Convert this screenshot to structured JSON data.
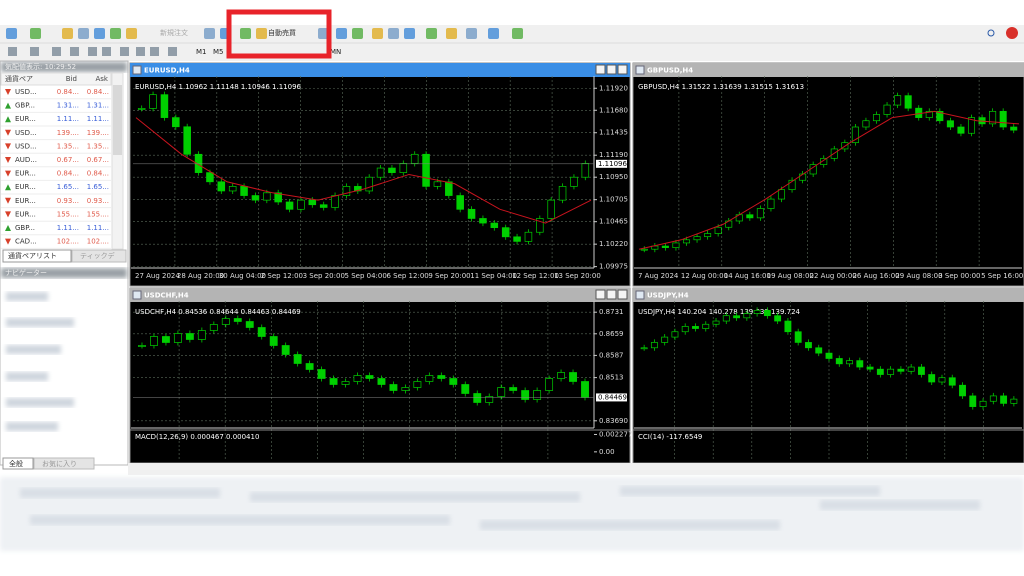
{
  "toolbar": {
    "new_order": "新規注文",
    "auto_trading": "自動売買",
    "timeframes": [
      "M1",
      "M5",
      "MN"
    ]
  },
  "market_watch": {
    "title": "気配値表示: 10:29:52",
    "columns": [
      "通貨ペア",
      "Bid",
      "Ask"
    ],
    "rows": [
      {
        "symbol": "USD...",
        "bid": "0.84...",
        "ask": "0.84...",
        "direction": "down"
      },
      {
        "symbol": "GBP...",
        "bid": "1.31...",
        "ask": "1.31...",
        "direction": "up"
      },
      {
        "symbol": "EUR...",
        "bid": "1.11...",
        "ask": "1.11...",
        "direction": "up"
      },
      {
        "symbol": "USD...",
        "bid": "139....",
        "ask": "139....",
        "direction": "down"
      },
      {
        "symbol": "USD...",
        "bid": "1.35...",
        "ask": "1.35...",
        "direction": "down"
      },
      {
        "symbol": "AUD...",
        "bid": "0.67...",
        "ask": "0.67...",
        "direction": "down"
      },
      {
        "symbol": "EUR...",
        "bid": "0.84...",
        "ask": "0.84...",
        "direction": "down"
      },
      {
        "symbol": "EUR...",
        "bid": "1.65...",
        "ask": "1.65...",
        "direction": "up"
      },
      {
        "symbol": "EUR...",
        "bid": "0.93...",
        "ask": "0.93...",
        "direction": "down"
      },
      {
        "symbol": "EUR...",
        "bid": "155....",
        "ask": "155....",
        "direction": "down"
      },
      {
        "symbol": "GBP...",
        "bid": "1.11...",
        "ask": "1.11...",
        "direction": "up"
      },
      {
        "symbol": "CAD...",
        "bid": "102....",
        "ask": "102....",
        "direction": "down"
      }
    ],
    "tabs": [
      "通貨ペアリスト",
      "ティックデ"
    ]
  },
  "navigator": {
    "title": "ナビゲーター",
    "tabs": [
      "全般",
      "お気に入り"
    ]
  },
  "charts": [
    {
      "title": "EURUSD,H4",
      "info": "EURUSD,H4  1.10962 1.11148 1.10946 1.11096",
      "active": true,
      "ylim": [
        1.0996,
        1.1201
      ],
      "yticks": [
        {
          "value": 1.1192,
          "label": "1.11920"
        },
        {
          "value": 1.1168,
          "label": "1.11680"
        },
        1.11435,
        {
          "value": 1.1119,
          "label": "1.11190"
        },
        {
          "value": 1.1095,
          "label": "1.10950"
        },
        1.10705,
        1.10465,
        {
          "value": 1.1022,
          "label": "1.10220"
        },
        1.09975
      ],
      "current": 1.11096,
      "dates": [
        "27 Aug 2024",
        "28 Aug 20:00",
        "30 Aug 04:00",
        "2 Sep 12:00",
        "3 Sep 20:00",
        "5 Sep 04:00",
        "6 Sep 12:00",
        "9 Sep 20:00",
        "11 Sep 04:00",
        "12 Sep 12:00",
        "13 Sep 20:00"
      ],
      "values": [
        1.117,
        1.1185,
        1.116,
        1.115,
        1.112,
        1.11,
        1.109,
        1.108,
        1.1085,
        1.1075,
        1.107,
        1.1078,
        1.1068,
        1.106,
        1.107,
        1.1065,
        1.1062,
        1.1075,
        1.1085,
        1.108,
        1.1095,
        1.1105,
        1.11,
        1.111,
        1.112,
        1.1085,
        1.109,
        1.1075,
        1.106,
        1.105,
        1.1045,
        1.104,
        1.103,
        1.1025,
        1.1035,
        1.105,
        1.107,
        1.1085,
        1.1095,
        1.111
      ],
      "ma": [
        1.116,
        1.112,
        1.109,
        1.1078,
        1.107,
        1.1082,
        1.1098,
        1.1088,
        1.106,
        1.1045,
        1.107
      ]
    },
    {
      "title": "GBPUSD,H4",
      "info": "GBPUSD,H4  1.31522 1.31639 1.31515 1.31613",
      "active": false,
      "ylim": [
        1.27,
        1.33
      ],
      "dates": [
        "7 Aug 2024",
        "12 Aug 00:00",
        "14 Aug 16:00",
        "19 Aug 08:00",
        "22 Aug 00:00",
        "26 Aug 16:00",
        "29 Aug 08:00",
        "3 Sep 00:00",
        "5 Sep 16:00"
      ],
      "values": [
        1.276,
        1.277,
        1.2765,
        1.278,
        1.279,
        1.28,
        1.281,
        1.283,
        1.285,
        1.287,
        1.286,
        1.289,
        1.292,
        1.295,
        1.298,
        1.3,
        1.303,
        1.305,
        1.308,
        1.31,
        1.315,
        1.317,
        1.319,
        1.322,
        1.325,
        1.321,
        1.318,
        1.32,
        1.317,
        1.315,
        1.313,
        1.318,
        1.316,
        1.32,
        1.315,
        1.314
      ],
      "ma": [
        1.276,
        1.279,
        1.284,
        1.292,
        1.301,
        1.31,
        1.318,
        1.32,
        1.317,
        1.316
      ]
    },
    {
      "title": "USDCHF,H4",
      "info": "USDCHF,H4  0.84536 0.84644 0.84463 0.84469",
      "active": false,
      "ylim": [
        0.8345,
        0.8755
      ],
      "yticks": [
        0.8731,
        0.8659,
        0.8587,
        0.8513,
        {
          "value": 0.8369,
          "label": "0.83690"
        }
      ],
      "current": 0.84469,
      "values": [
        0.862,
        0.865,
        0.863,
        0.866,
        0.864,
        0.867,
        0.869,
        0.871,
        0.87,
        0.868,
        0.865,
        0.862,
        0.859,
        0.856,
        0.854,
        0.851,
        0.849,
        0.85,
        0.852,
        0.851,
        0.849,
        0.847,
        0.848,
        0.85,
        0.852,
        0.851,
        0.849,
        0.846,
        0.843,
        0.845,
        0.848,
        0.847,
        0.844,
        0.847,
        0.851,
        0.853,
        0.85,
        0.8447
      ],
      "indicator": {
        "label": "MACD(12,26,9)  0.000467  0.000410",
        "ylim": [
          -0.0012,
          0.0026
        ],
        "yticks": [
          0.002277,
          {
            "value": 0,
            "label": "0.00"
          }
        ]
      }
    },
    {
      "title": "USDJPY,H4",
      "info": "USDJPY,H4  140.204 140.278 139.638 139.724",
      "active": false,
      "ylim": [
        138.5,
        150
      ],
      "values": [
        146,
        146.5,
        147,
        147.5,
        148,
        147.8,
        148.2,
        148.5,
        149,
        148.8,
        149.2,
        149.5,
        149,
        148.5,
        147.5,
        146.5,
        146,
        145.5,
        145,
        144.5,
        144.8,
        144.2,
        144,
        143.5,
        144,
        143.8,
        144.2,
        143.5,
        142.8,
        143.2,
        142.5,
        141.5,
        140.5,
        141,
        141.5,
        140.8,
        141.2
      ],
      "indicator": {
        "label": "CCI(14)  -117.6549"
      }
    }
  ]
}
